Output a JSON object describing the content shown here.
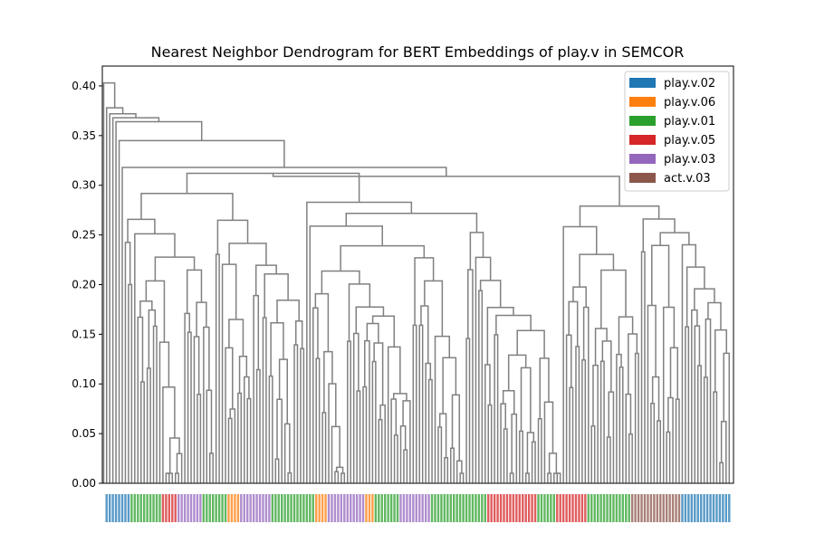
{
  "chart_data": {
    "type": "dendrogram",
    "title": "Nearest Neighbor Dendrogram for BERT Embeddings of play.v in SEMCOR",
    "ylim": [
      0,
      0.42
    ],
    "yticks": [
      "0.00",
      "0.05",
      "0.10",
      "0.15",
      "0.20",
      "0.25",
      "0.30",
      "0.35",
      "0.40"
    ],
    "ytick_values": [
      0,
      0.05,
      0.1,
      0.15,
      0.2,
      0.25,
      0.3,
      0.35,
      0.4
    ],
    "link_color": "#808080",
    "legend_placement": "top-right",
    "legend": [
      {
        "label": "play.v.02",
        "color": "#1f77b4"
      },
      {
        "label": "play.v.06",
        "color": "#ff7f0e"
      },
      {
        "label": "play.v.01",
        "color": "#2ca02c"
      },
      {
        "label": "play.v.05",
        "color": "#d62728"
      },
      {
        "label": "play.v.03",
        "color": "#9467bd"
      },
      {
        "label": "act.v.03",
        "color": "#8c564b"
      }
    ],
    "leaf_count": 200,
    "leaf_sense_groups": [
      {
        "sense": "play.v.02",
        "count": 8
      },
      {
        "sense": "play.v.01",
        "count": 10
      },
      {
        "sense": "play.v.05",
        "count": 5
      },
      {
        "sense": "play.v.03",
        "count": 8
      },
      {
        "sense": "play.v.01",
        "count": 8
      },
      {
        "sense": "play.v.06",
        "count": 4
      },
      {
        "sense": "play.v.03",
        "count": 10
      },
      {
        "sense": "play.v.01",
        "count": 14
      },
      {
        "sense": "play.v.06",
        "count": 4
      },
      {
        "sense": "play.v.03",
        "count": 12
      },
      {
        "sense": "play.v.06",
        "count": 3
      },
      {
        "sense": "play.v.01",
        "count": 8
      },
      {
        "sense": "play.v.03",
        "count": 10
      },
      {
        "sense": "play.v.01",
        "count": 18
      },
      {
        "sense": "play.v.05",
        "count": 16
      },
      {
        "sense": "play.v.01",
        "count": 6
      },
      {
        "sense": "play.v.05",
        "count": 10
      },
      {
        "sense": "play.v.01",
        "count": 14
      },
      {
        "sense": "act.v.03",
        "count": 16
      },
      {
        "sense": "play.v.02",
        "count": 16
      }
    ],
    "top_merges": [
      {
        "height": 0.403
      },
      {
        "height": 0.378
      },
      {
        "height": 0.372
      },
      {
        "height": 0.368
      },
      {
        "height": 0.364
      },
      {
        "height": 0.345
      },
      {
        "height": 0.318
      },
      {
        "height": 0.312
      },
      {
        "height": 0.309
      },
      {
        "height": 0.308
      },
      {
        "height": 0.279
      }
    ]
  }
}
